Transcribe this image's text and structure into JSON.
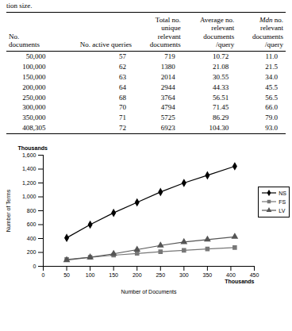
{
  "table": {
    "caption": "tion size.",
    "header": [
      "No.\ndocuments",
      "No. active queries",
      "Total no.\nunique\nrelevant\ndocuments",
      "Average no.\nrelevant\ndocuments\n/query",
      "Mdn no.\nrelevant\ndocuments\n/query"
    ],
    "rows": [
      [
        "50,000",
        "57",
        "719",
        "10.72",
        "11.0"
      ],
      [
        "100,000",
        "62",
        "1380",
        "21.08",
        "21.5"
      ],
      [
        "150,000",
        "63",
        "2014",
        "30.55",
        "34.0"
      ],
      [
        "200,000",
        "64",
        "2944",
        "44.33",
        "45.5"
      ],
      [
        "250,000",
        "68",
        "3764",
        "56.51",
        "56.5"
      ],
      [
        "300,000",
        "70",
        "4794",
        "71.45",
        "66.0"
      ],
      [
        "350,000",
        "71",
        "5725",
        "86.29",
        "79.0"
      ],
      [
        "408,305",
        "72",
        "6923",
        "104.30",
        "93.0"
      ]
    ]
  },
  "chart_data": {
    "type": "line",
    "x_label": "Number of Documents",
    "y_label": "Number of Terms",
    "annotations": [
      {
        "text": "Thousands",
        "axis": "y"
      },
      {
        "text": "Thousands",
        "axis": "x"
      }
    ],
    "x": [
      50,
      100,
      150,
      200,
      250,
      300,
      350,
      408.3
    ],
    "series": [
      {
        "name": "NS",
        "color": "#000000",
        "marker": "diamond",
        "values": [
          410,
          600,
          770,
          920,
          1070,
          1200,
          1310,
          1440
        ]
      },
      {
        "name": "FS",
        "color": "#777777",
        "marker": "square",
        "values": [
          100,
          130,
          160,
          185,
          210,
          230,
          250,
          270
        ]
      },
      {
        "name": "LV",
        "color": "#555555",
        "marker": "triangle",
        "values": [
          90,
          130,
          180,
          240,
          300,
          350,
          385,
          425
        ]
      }
    ],
    "xlim": [
      0,
      450
    ],
    "xticks": [
      0,
      50,
      100,
      150,
      200,
      250,
      300,
      350,
      400,
      450
    ],
    "ylim": [
      0,
      1600
    ],
    "yticks": [
      0,
      200,
      400,
      600,
      800,
      {
        "value": 1000,
        "label": "1,000"
      },
      {
        "value": 1200,
        "label": "1,200"
      },
      {
        "value": 1400,
        "label": "1,400"
      },
      {
        "value": 1600,
        "label": "1,600"
      }
    ],
    "grid": false,
    "legend": "right"
  }
}
